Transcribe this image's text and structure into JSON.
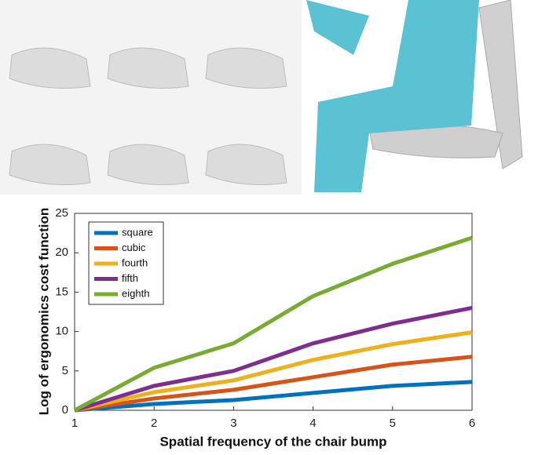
{
  "chart_data": {
    "type": "line",
    "x_label": "Spatial frequency of the chair bump",
    "y_label": "Log of ergonomics cost function",
    "x": [
      1,
      2,
      3,
      4,
      5,
      6
    ],
    "xlim": [
      1,
      6
    ],
    "xticks": [
      1,
      2,
      3,
      4,
      5,
      6
    ],
    "ylim": [
      0,
      25
    ],
    "yticks": [
      0,
      5,
      10,
      15,
      20,
      25
    ],
    "legend": "upper-left",
    "series": [
      {
        "name": "square",
        "color": "#0072bd",
        "values": [
          0,
          0.8,
          1.3,
          2.2,
          3.1,
          3.6
        ]
      },
      {
        "name": "cubic",
        "color": "#d95319",
        "values": [
          0,
          1.5,
          2.6,
          4.2,
          5.8,
          6.8
        ]
      },
      {
        "name": "fourth",
        "color": "#edb120",
        "values": [
          0,
          2.3,
          3.8,
          6.4,
          8.4,
          9.9
        ]
      },
      {
        "name": "fifth",
        "color": "#7e2f8e",
        "values": [
          0,
          3.1,
          5.0,
          8.5,
          11.0,
          13.0
        ]
      },
      {
        "name": "eighth",
        "color": "#77ac30",
        "values": [
          0,
          5.4,
          8.5,
          14.5,
          18.6,
          21.9
        ]
      }
    ]
  }
}
